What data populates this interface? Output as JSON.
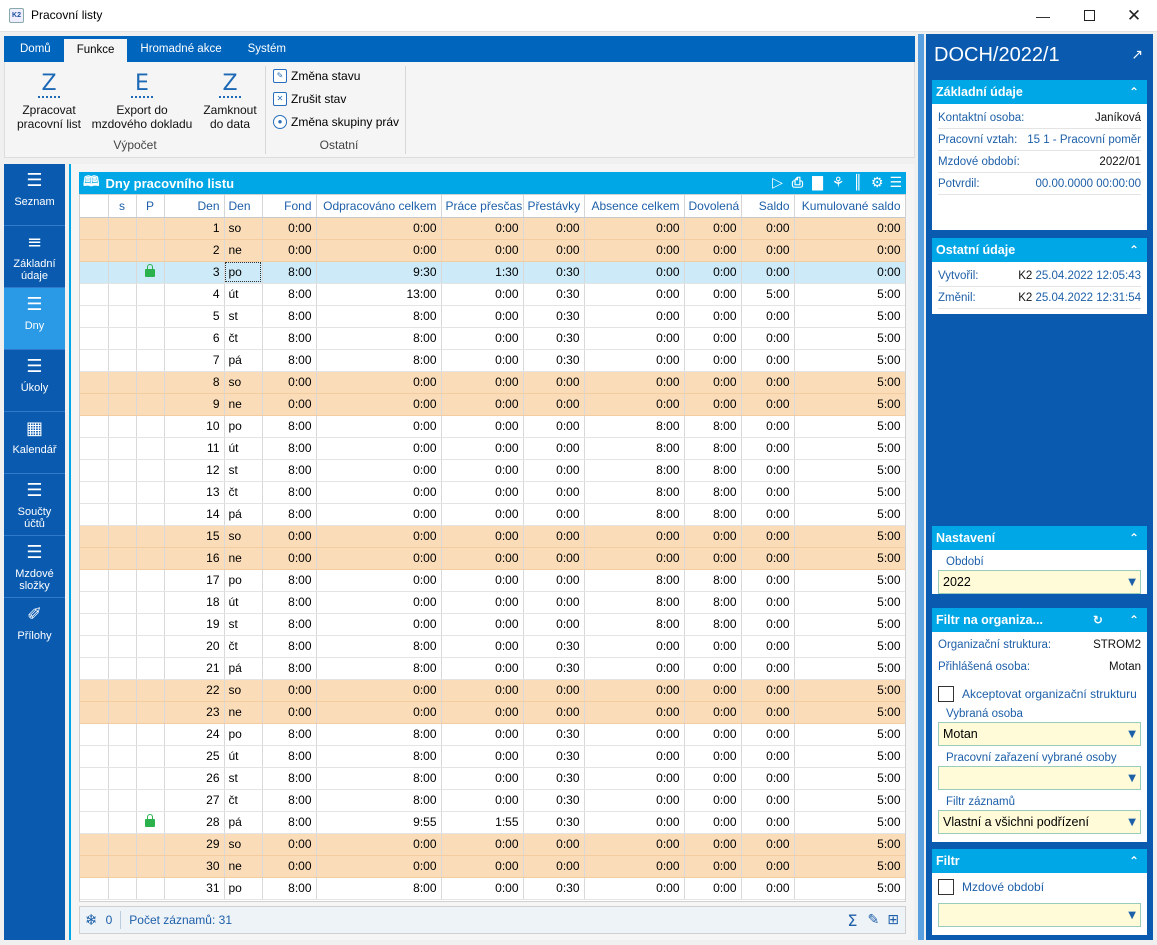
{
  "window": {
    "title": "Pracovní listy",
    "logo": "K2",
    "controls": [
      "minimize-icon",
      "maximize-icon",
      "close-icon"
    ]
  },
  "ribbon": {
    "tabs": [
      {
        "label": "Domů"
      },
      {
        "label": "Funkce",
        "active": true
      },
      {
        "label": "Hromadné akce"
      },
      {
        "label": "Systém"
      }
    ],
    "groups": [
      {
        "label": "Výpočet",
        "buttons": [
          {
            "icon": "Z",
            "line1": "Zpracovat",
            "line2": "pracovní list"
          },
          {
            "icon": "E",
            "line1": "Export do",
            "line2": "mzdového dokladu"
          },
          {
            "icon": "Z",
            "line1": "Zamknout",
            "line2": "do data"
          }
        ]
      },
      {
        "label": "Ostatní",
        "buttons": [
          {
            "label": "Změna stavu"
          },
          {
            "label": "Zrušit stav"
          },
          {
            "label": "Změna skupiny práv"
          }
        ]
      }
    ]
  },
  "nav": {
    "items": [
      {
        "line1": "Seznam",
        "line2": ""
      },
      {
        "line1": "Základní",
        "line2": "údaje"
      },
      {
        "line1": "Dny",
        "line2": "",
        "active": true
      },
      {
        "line1": "Úkoly",
        "line2": ""
      },
      {
        "line1": "Kalendář",
        "line2": ""
      },
      {
        "line1": "Součty",
        "line2": "účtů"
      },
      {
        "line1": "Mzdové",
        "line2": "složky"
      },
      {
        "line1": "Přílohy",
        "line2": ""
      }
    ]
  },
  "grid": {
    "title": "Dny pracovního listu",
    "columns": [
      "",
      "s",
      "P",
      "Den",
      "Den",
      "Fond",
      "Odpracováno celkem",
      "Práce přesčas",
      "Přestávky",
      "Absence celkem",
      "Dovolená",
      "Saldo",
      "Kumulované saldo"
    ],
    "rows": [
      {
        "n": "1",
        "d": "so",
        "f": "0:00",
        "o": "0:00",
        "p": "0:00",
        "b": "0:00",
        "a": "0:00",
        "v": "0:00",
        "s": "0:00",
        "k": "0:00",
        "we": true
      },
      {
        "n": "2",
        "d": "ne",
        "f": "0:00",
        "o": "0:00",
        "p": "0:00",
        "b": "0:00",
        "a": "0:00",
        "v": "0:00",
        "s": "0:00",
        "k": "0:00",
        "we": true
      },
      {
        "n": "3",
        "d": "po",
        "f": "8:00",
        "o": "9:30",
        "p": "1:30",
        "b": "0:30",
        "a": "0:00",
        "v": "0:00",
        "s": "0:00",
        "k": "0:00",
        "sel": true,
        "lock": true
      },
      {
        "n": "4",
        "d": "út",
        "f": "8:00",
        "o": "13:00",
        "p": "0:00",
        "b": "0:30",
        "a": "0:00",
        "v": "0:00",
        "s": "5:00",
        "k": "5:00"
      },
      {
        "n": "5",
        "d": "st",
        "f": "8:00",
        "o": "8:00",
        "p": "0:00",
        "b": "0:30",
        "a": "0:00",
        "v": "0:00",
        "s": "0:00",
        "k": "5:00"
      },
      {
        "n": "6",
        "d": "čt",
        "f": "8:00",
        "o": "8:00",
        "p": "0:00",
        "b": "0:30",
        "a": "0:00",
        "v": "0:00",
        "s": "0:00",
        "k": "5:00"
      },
      {
        "n": "7",
        "d": "pá",
        "f": "8:00",
        "o": "8:00",
        "p": "0:00",
        "b": "0:30",
        "a": "0:00",
        "v": "0:00",
        "s": "0:00",
        "k": "5:00"
      },
      {
        "n": "8",
        "d": "so",
        "f": "0:00",
        "o": "0:00",
        "p": "0:00",
        "b": "0:00",
        "a": "0:00",
        "v": "0:00",
        "s": "0:00",
        "k": "5:00",
        "we": true
      },
      {
        "n": "9",
        "d": "ne",
        "f": "0:00",
        "o": "0:00",
        "p": "0:00",
        "b": "0:00",
        "a": "0:00",
        "v": "0:00",
        "s": "0:00",
        "k": "5:00",
        "we": true
      },
      {
        "n": "10",
        "d": "po",
        "f": "8:00",
        "o": "0:00",
        "p": "0:00",
        "b": "0:00",
        "a": "8:00",
        "v": "8:00",
        "s": "0:00",
        "k": "5:00"
      },
      {
        "n": "11",
        "d": "út",
        "f": "8:00",
        "o": "0:00",
        "p": "0:00",
        "b": "0:00",
        "a": "8:00",
        "v": "8:00",
        "s": "0:00",
        "k": "5:00"
      },
      {
        "n": "12",
        "d": "st",
        "f": "8:00",
        "o": "0:00",
        "p": "0:00",
        "b": "0:00",
        "a": "8:00",
        "v": "8:00",
        "s": "0:00",
        "k": "5:00"
      },
      {
        "n": "13",
        "d": "čt",
        "f": "8:00",
        "o": "0:00",
        "p": "0:00",
        "b": "0:00",
        "a": "8:00",
        "v": "8:00",
        "s": "0:00",
        "k": "5:00"
      },
      {
        "n": "14",
        "d": "pá",
        "f": "8:00",
        "o": "0:00",
        "p": "0:00",
        "b": "0:00",
        "a": "8:00",
        "v": "8:00",
        "s": "0:00",
        "k": "5:00"
      },
      {
        "n": "15",
        "d": "so",
        "f": "0:00",
        "o": "0:00",
        "p": "0:00",
        "b": "0:00",
        "a": "0:00",
        "v": "0:00",
        "s": "0:00",
        "k": "5:00",
        "we": true
      },
      {
        "n": "16",
        "d": "ne",
        "f": "0:00",
        "o": "0:00",
        "p": "0:00",
        "b": "0:00",
        "a": "0:00",
        "v": "0:00",
        "s": "0:00",
        "k": "5:00",
        "we": true
      },
      {
        "n": "17",
        "d": "po",
        "f": "8:00",
        "o": "0:00",
        "p": "0:00",
        "b": "0:00",
        "a": "8:00",
        "v": "8:00",
        "s": "0:00",
        "k": "5:00"
      },
      {
        "n": "18",
        "d": "út",
        "f": "8:00",
        "o": "0:00",
        "p": "0:00",
        "b": "0:00",
        "a": "8:00",
        "v": "8:00",
        "s": "0:00",
        "k": "5:00"
      },
      {
        "n": "19",
        "d": "st",
        "f": "8:00",
        "o": "0:00",
        "p": "0:00",
        "b": "0:00",
        "a": "8:00",
        "v": "8:00",
        "s": "0:00",
        "k": "5:00"
      },
      {
        "n": "20",
        "d": "čt",
        "f": "8:00",
        "o": "8:00",
        "p": "0:00",
        "b": "0:30",
        "a": "0:00",
        "v": "0:00",
        "s": "0:00",
        "k": "5:00"
      },
      {
        "n": "21",
        "d": "pá",
        "f": "8:00",
        "o": "8:00",
        "p": "0:00",
        "b": "0:30",
        "a": "0:00",
        "v": "0:00",
        "s": "0:00",
        "k": "5:00"
      },
      {
        "n": "22",
        "d": "so",
        "f": "0:00",
        "o": "0:00",
        "p": "0:00",
        "b": "0:00",
        "a": "0:00",
        "v": "0:00",
        "s": "0:00",
        "k": "5:00",
        "we": true
      },
      {
        "n": "23",
        "d": "ne",
        "f": "0:00",
        "o": "0:00",
        "p": "0:00",
        "b": "0:00",
        "a": "0:00",
        "v": "0:00",
        "s": "0:00",
        "k": "5:00",
        "we": true
      },
      {
        "n": "24",
        "d": "po",
        "f": "8:00",
        "o": "8:00",
        "p": "0:00",
        "b": "0:30",
        "a": "0:00",
        "v": "0:00",
        "s": "0:00",
        "k": "5:00"
      },
      {
        "n": "25",
        "d": "út",
        "f": "8:00",
        "o": "8:00",
        "p": "0:00",
        "b": "0:30",
        "a": "0:00",
        "v": "0:00",
        "s": "0:00",
        "k": "5:00"
      },
      {
        "n": "26",
        "d": "st",
        "f": "8:00",
        "o": "8:00",
        "p": "0:00",
        "b": "0:30",
        "a": "0:00",
        "v": "0:00",
        "s": "0:00",
        "k": "5:00"
      },
      {
        "n": "27",
        "d": "čt",
        "f": "8:00",
        "o": "8:00",
        "p": "0:00",
        "b": "0:30",
        "a": "0:00",
        "v": "0:00",
        "s": "0:00",
        "k": "5:00"
      },
      {
        "n": "28",
        "d": "pá",
        "f": "8:00",
        "o": "9:55",
        "p": "1:55",
        "b": "0:30",
        "a": "0:00",
        "v": "0:00",
        "s": "0:00",
        "k": "5:00",
        "lock": true
      },
      {
        "n": "29",
        "d": "so",
        "f": "0:00",
        "o": "0:00",
        "p": "0:00",
        "b": "0:00",
        "a": "0:00",
        "v": "0:00",
        "s": "0:00",
        "k": "5:00",
        "we": true
      },
      {
        "n": "30",
        "d": "ne",
        "f": "0:00",
        "o": "0:00",
        "p": "0:00",
        "b": "0:00",
        "a": "0:00",
        "v": "0:00",
        "s": "0:00",
        "k": "5:00",
        "we": true
      },
      {
        "n": "31",
        "d": "po",
        "f": "8:00",
        "o": "8:00",
        "p": "0:00",
        "b": "0:30",
        "a": "0:00",
        "v": "0:00",
        "s": "0:00",
        "k": "5:00"
      }
    ],
    "footer": {
      "selected_count": "0",
      "record_count": "Počet záznamů: 31"
    }
  },
  "right": {
    "doc_title": "DOCH/2022/1",
    "basic": {
      "title": "Základní údaje",
      "rows": [
        {
          "k": "Kontaktní osoba:",
          "v": "Janíková",
          "blue": false
        },
        {
          "k": "Pracovní vztah:",
          "v": "15 1 - Pracovní poměr",
          "blue": true
        },
        {
          "k": "Mzdové období:",
          "v": "2022/01",
          "blue": false
        },
        {
          "k": "Potvrdil:",
          "v": "00.00.0000 00:00:00",
          "blue": true
        }
      ]
    },
    "other": {
      "title": "Ostatní údaje",
      "rows": [
        {
          "k": "Vytvořil:",
          "user": "K2",
          "v": "25.04.2022 12:05:43"
        },
        {
          "k": "Změnil:",
          "user": "K2",
          "v": "25.04.2022 12:31:54"
        }
      ]
    },
    "settings": {
      "title": "Nastavení",
      "period_label": "Období",
      "period_value": "2022"
    },
    "orgfilter": {
      "title": "Filtr na organiza...",
      "struct_label": "Organizační struktura:",
      "struct_value": "STROM2",
      "login_label": "Přihlášená osoba:",
      "login_value": "Motan",
      "accept_label": "Akceptovat organizační strukturu",
      "person_label": "Vybraná osoba",
      "person_value": "Motan",
      "position_label": "Pracovní zařazení vybrané osoby",
      "position_value": "",
      "records_label": "Filtr záznamů",
      "records_value": "Vlastní a všichni podřízení"
    },
    "filter": {
      "title": "Filtr",
      "period_label": "Mzdové období",
      "period_value": ""
    }
  }
}
